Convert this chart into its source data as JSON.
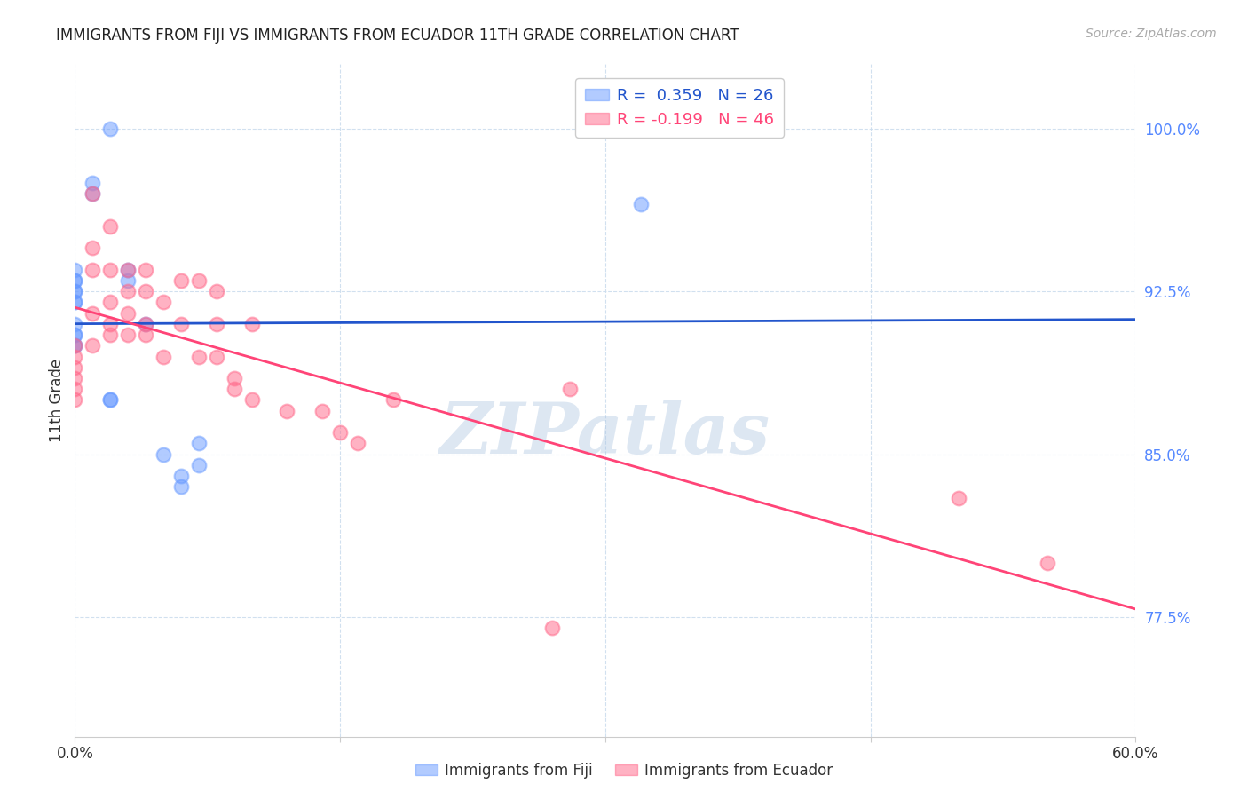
{
  "title": "IMMIGRANTS FROM FIJI VS IMMIGRANTS FROM ECUADOR 11TH GRADE CORRELATION CHART",
  "source": "Source: ZipAtlas.com",
  "ylabel": "11th Grade",
  "yticks": [
    0.775,
    0.85,
    0.925,
    1.0
  ],
  "ytick_labels": [
    "77.5%",
    "85.0%",
    "92.5%",
    "100.0%"
  ],
  "xlim": [
    0.0,
    0.6
  ],
  "ylim": [
    0.72,
    1.03
  ],
  "fiji_R": 0.359,
  "fiji_N": 26,
  "ecuador_R": -0.199,
  "ecuador_N": 46,
  "fiji_color": "#6699ff",
  "ecuador_color": "#ff6688",
  "fiji_line_color": "#2255cc",
  "ecuador_line_color": "#ff4477",
  "watermark": "ZIPatlas",
  "fiji_scatter_x": [
    0.02,
    0.01,
    0.01,
    0.0,
    0.0,
    0.0,
    0.0,
    0.0,
    0.0,
    0.0,
    0.0,
    0.0,
    0.0,
    0.0,
    0.0,
    0.02,
    0.02,
    0.03,
    0.03,
    0.04,
    0.05,
    0.06,
    0.06,
    0.07,
    0.07,
    0.32
  ],
  "fiji_scatter_y": [
    1.0,
    0.975,
    0.97,
    0.935,
    0.93,
    0.93,
    0.925,
    0.925,
    0.92,
    0.92,
    0.91,
    0.905,
    0.905,
    0.9,
    0.9,
    0.875,
    0.875,
    0.935,
    0.93,
    0.91,
    0.85,
    0.84,
    0.835,
    0.855,
    0.845,
    0.965
  ],
  "ecuador_scatter_x": [
    0.0,
    0.0,
    0.0,
    0.0,
    0.0,
    0.0,
    0.01,
    0.01,
    0.01,
    0.01,
    0.01,
    0.02,
    0.02,
    0.02,
    0.02,
    0.02,
    0.03,
    0.03,
    0.03,
    0.03,
    0.04,
    0.04,
    0.04,
    0.04,
    0.05,
    0.05,
    0.06,
    0.06,
    0.07,
    0.07,
    0.08,
    0.08,
    0.08,
    0.09,
    0.09,
    0.1,
    0.1,
    0.12,
    0.14,
    0.15,
    0.16,
    0.18,
    0.27,
    0.28,
    0.5,
    0.55
  ],
  "ecuador_scatter_y": [
    0.9,
    0.895,
    0.89,
    0.885,
    0.88,
    0.875,
    0.97,
    0.945,
    0.935,
    0.915,
    0.9,
    0.955,
    0.935,
    0.92,
    0.91,
    0.905,
    0.935,
    0.925,
    0.915,
    0.905,
    0.935,
    0.925,
    0.91,
    0.905,
    0.92,
    0.895,
    0.93,
    0.91,
    0.93,
    0.895,
    0.925,
    0.91,
    0.895,
    0.885,
    0.88,
    0.91,
    0.875,
    0.87,
    0.87,
    0.86,
    0.855,
    0.875,
    0.77,
    0.88,
    0.83,
    0.8
  ],
  "ytick_color": "#5588ff",
  "xtick_color": "#333333",
  "grid_color": "#ccddee",
  "title_fontsize": 12,
  "source_fontsize": 10,
  "tick_fontsize": 12,
  "ylabel_fontsize": 12,
  "legend_fontsize": 13
}
